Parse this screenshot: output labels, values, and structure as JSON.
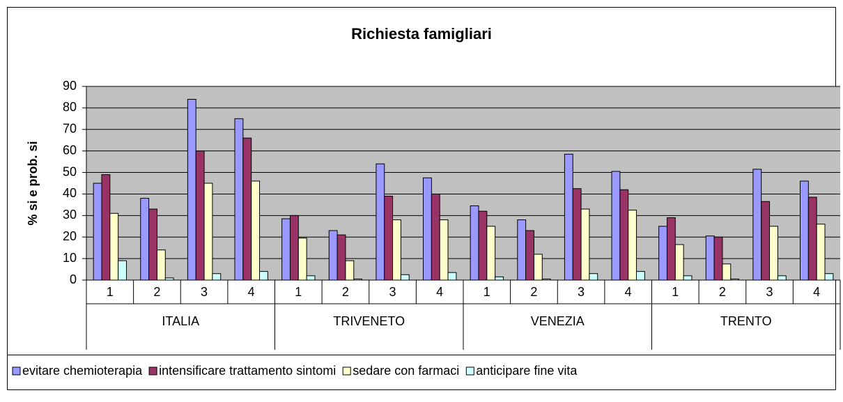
{
  "chart_data": {
    "type": "bar",
    "title": "Richiesta famigliari",
    "y_label": "% si e prob. si",
    "groups": [
      "ITALIA",
      "TRIVENETO",
      "VENEZIA",
      "TRENTO"
    ],
    "categories": [
      "1",
      "2",
      "3",
      "4",
      "1",
      "2",
      "3",
      "4",
      "1",
      "2",
      "3",
      "4",
      "1",
      "2",
      "3",
      "4"
    ],
    "series": [
      {
        "name": "evitare chemioterapia",
        "color": "#9999ff",
        "values": [
          45,
          38,
          84,
          75,
          28.5,
          23,
          54,
          47.5,
          34.5,
          28,
          58.5,
          50.5,
          25,
          20.5,
          51.5,
          46
        ]
      },
      {
        "name": "intensificare trattamento sintomi",
        "color": "#993366",
        "values": [
          49,
          33,
          60,
          66,
          30,
          21,
          39,
          40,
          32,
          23,
          42.5,
          42,
          29,
          20,
          36.5,
          38.5
        ]
      },
      {
        "name": "sedare con farmaci",
        "color": "#ffffcc",
        "values": [
          31,
          14,
          45,
          46,
          19.5,
          9,
          28,
          28,
          25,
          12,
          33,
          32.5,
          16.5,
          7.5,
          25,
          26
        ]
      },
      {
        "name": "anticipare fine vita",
        "color": "#ccffff",
        "values": [
          9,
          1,
          3,
          4,
          2,
          0.5,
          2.5,
          3.5,
          1.5,
          0.5,
          3,
          4,
          2,
          0.5,
          2,
          3
        ]
      }
    ],
    "ylim": [
      0,
      90
    ],
    "yticks": [
      0,
      10,
      20,
      30,
      40,
      50,
      60,
      70,
      80,
      90
    ],
    "grid": true,
    "legend": "bottom"
  }
}
